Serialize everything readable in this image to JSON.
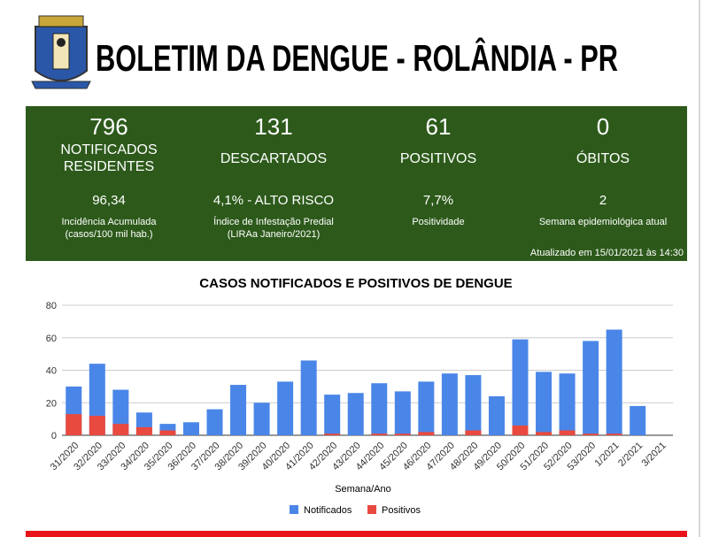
{
  "header": {
    "title": "BOLETIM DA DENGUE - ROLÂNDIA - PR"
  },
  "stats": [
    {
      "value": "796",
      "label": [
        "NOTIFICADOS",
        "RESIDENTES"
      ],
      "sub_value": "96,34",
      "sub_label": [
        "Incidência Acumulada",
        "(casos/100 mil hab.)"
      ]
    },
    {
      "value": "131",
      "label": [
        "DESCARTADOS"
      ],
      "sub_value": "4,1% - ALTO RISCO",
      "sub_label": [
        "Índice de Infestação Predial",
        "(LIRAa Janeiro/2021)"
      ]
    },
    {
      "value": "61",
      "label": [
        "POSITIVOS"
      ],
      "sub_value": "7,7%",
      "sub_label": [
        "Positividade"
      ]
    },
    {
      "value": "0",
      "label": [
        "ÓBITOS"
      ],
      "sub_value": "2",
      "sub_label": [
        "Semana epidemiológica atual"
      ]
    }
  ],
  "updated": "Atualizado em 15/01/2021 às 14:30",
  "chart_data": {
    "type": "bar",
    "title": "CASOS NOTIFICADOS E POSITIVOS DE DENGUE",
    "x_label": "Semana/Ano",
    "categories": [
      "31/2020",
      "32/2020",
      "33/2020",
      "34/2020",
      "35/2020",
      "36/2020",
      "37/2020",
      "38/2020",
      "39/2020",
      "40/2020",
      "41/2020",
      "42/2020",
      "43/2020",
      "44/2020",
      "45/2020",
      "46/2020",
      "47/2020",
      "48/2020",
      "49/2020",
      "50/2020",
      "51/2020",
      "52/2020",
      "53/2020",
      "1/2021",
      "2/2021",
      "3/2021"
    ],
    "series": [
      {
        "name": "Notificados",
        "color": "#4a86e8",
        "values": [
          30,
          44,
          28,
          14,
          7,
          8,
          16,
          31,
          20,
          33,
          46,
          25,
          26,
          32,
          27,
          33,
          38,
          37,
          24,
          59,
          39,
          38,
          58,
          65,
          18,
          0
        ]
      },
      {
        "name": "Positivos",
        "color": "#e84a3f",
        "values": [
          13,
          12,
          7,
          5,
          3,
          0,
          0,
          0,
          0,
          0,
          0,
          1,
          0,
          1,
          1,
          2,
          0,
          3,
          0,
          6,
          2,
          3,
          1,
          1,
          0,
          0
        ]
      }
    ],
    "ylim": [
      0,
      80
    ],
    "yticks": [
      0,
      20,
      40,
      60,
      80
    ],
    "grid": true,
    "legend": "bottom"
  }
}
